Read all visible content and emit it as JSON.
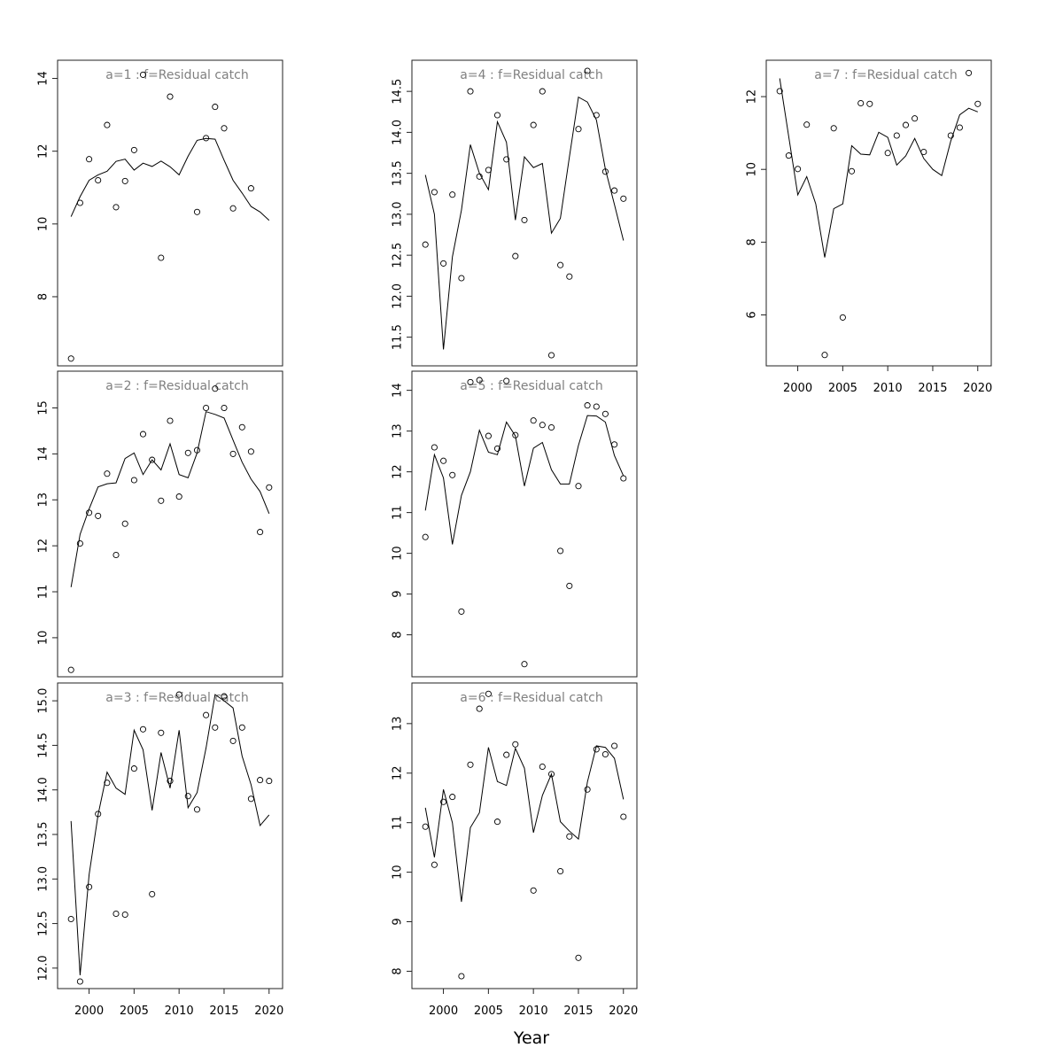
{
  "figure": {
    "xlabel": "Year",
    "style": {
      "line_color": "#000000",
      "title_color": "#808080",
      "background": "#ffffff"
    }
  },
  "chart_data": [
    {
      "type": "line",
      "title": "a=1  :  f=Residual catch",
      "x": [
        1998,
        1999,
        2000,
        2001,
        2002,
        2003,
        2004,
        2005,
        2006,
        2007,
        2008,
        2009,
        2010,
        2011,
        2012,
        2013,
        2014,
        2015,
        2016,
        2017,
        2018,
        2019,
        2020
      ],
      "xlim": [
        1996.5,
        2021.5
      ],
      "xticks": [
        2000,
        2005,
        2010,
        2015,
        2020
      ],
      "ylim": [
        6.1,
        14.5
      ],
      "yticks": [
        8,
        10,
        12,
        14
      ],
      "series": [
        {
          "kind": "line",
          "values": [
            10.2,
            10.75,
            11.2,
            11.35,
            11.45,
            11.72,
            11.78,
            11.48,
            11.67,
            11.58,
            11.73,
            11.57,
            11.35,
            11.86,
            12.3,
            12.35,
            12.33,
            11.75,
            11.2,
            10.85,
            10.48,
            10.33,
            10.1
          ]
        },
        {
          "kind": "points",
          "values": [
            6.3,
            10.58,
            11.78,
            11.2,
            12.72,
            10.46,
            11.18,
            12.03,
            14.1,
            null,
            9.07,
            13.5,
            null,
            null,
            10.33,
            12.36,
            13.22,
            12.63,
            10.43,
            null,
            10.98,
            null,
            null
          ]
        }
      ],
      "show_x_axis": false
    },
    {
      "type": "line",
      "title": "a=2  :  f=Residual catch",
      "x": [
        1998,
        1999,
        2000,
        2001,
        2002,
        2003,
        2004,
        2005,
        2006,
        2007,
        2008,
        2009,
        2010,
        2011,
        2012,
        2013,
        2014,
        2015,
        2016,
        2017,
        2018,
        2019,
        2020
      ],
      "xlim": [
        1996.5,
        2021.5
      ],
      "xticks": [
        2000,
        2005,
        2010,
        2015,
        2020
      ],
      "ylim": [
        9.15,
        15.8
      ],
      "yticks": [
        10,
        11,
        12,
        13,
        14,
        15
      ],
      "series": [
        {
          "kind": "line",
          "values": [
            11.1,
            12.25,
            12.8,
            13.28,
            13.35,
            13.37,
            13.9,
            14.02,
            13.55,
            13.87,
            13.65,
            14.22,
            13.55,
            13.48,
            14.02,
            14.92,
            14.86,
            14.78,
            14.3,
            13.82,
            13.45,
            13.18,
            12.7
          ]
        },
        {
          "kind": "points",
          "values": [
            9.3,
            12.05,
            12.72,
            12.65,
            13.57,
            11.8,
            12.48,
            13.43,
            14.43,
            13.87,
            12.98,
            14.72,
            13.07,
            14.02,
            14.08,
            15.0,
            15.42,
            15.0,
            14.0,
            14.58,
            14.05,
            12.3,
            13.27
          ]
        }
      ],
      "show_x_axis": false
    },
    {
      "type": "line",
      "title": "a=3  :  f=Residual catch",
      "x": [
        1998,
        1999,
        2000,
        2001,
        2002,
        2003,
        2004,
        2005,
        2006,
        2007,
        2008,
        2009,
        2010,
        2011,
        2012,
        2013,
        2014,
        2015,
        2016,
        2017,
        2018,
        2019,
        2020
      ],
      "xlim": [
        1996.5,
        2021.5
      ],
      "xticks": [
        2000,
        2005,
        2010,
        2015,
        2020
      ],
      "ylim": [
        11.77,
        15.2
      ],
      "yticks": [
        12.0,
        12.5,
        13.0,
        13.5,
        14.0,
        14.5,
        15.0
      ],
      "series": [
        {
          "kind": "line",
          "values": [
            13.65,
            11.92,
            13.05,
            13.72,
            14.2,
            14.02,
            13.95,
            14.67,
            14.45,
            13.77,
            14.42,
            14.02,
            14.67,
            13.8,
            13.97,
            14.47,
            15.07,
            15.0,
            14.92,
            14.38,
            14.06,
            13.6,
            13.72
          ]
        },
        {
          "kind": "points",
          "values": [
            12.55,
            11.85,
            12.91,
            13.73,
            14.08,
            12.61,
            12.6,
            14.24,
            14.68,
            12.83,
            14.64,
            14.1,
            15.07,
            13.93,
            13.78,
            14.84,
            14.7,
            15.05,
            14.55,
            14.7,
            13.9,
            14.11,
            14.1
          ]
        }
      ],
      "show_x_axis": true
    },
    {
      "type": "line",
      "title": "a=4  :  f=Residual catch",
      "x": [
        1998,
        1999,
        2000,
        2001,
        2002,
        2003,
        2004,
        2005,
        2006,
        2007,
        2008,
        2009,
        2010,
        2011,
        2012,
        2013,
        2014,
        2015,
        2016,
        2017,
        2018,
        2019,
        2020
      ],
      "xlim": [
        1996.5,
        2021.5
      ],
      "xticks": [
        2000,
        2005,
        2010,
        2015,
        2020
      ],
      "ylim": [
        11.15,
        14.88
      ],
      "yticks": [
        11.5,
        12.0,
        12.5,
        13.0,
        13.5,
        14.0,
        14.5
      ],
      "series": [
        {
          "kind": "line",
          "values": [
            13.48,
            13.0,
            11.35,
            12.48,
            13.05,
            13.85,
            13.5,
            13.3,
            14.13,
            13.88,
            12.93,
            13.7,
            13.57,
            13.62,
            12.77,
            12.95,
            13.7,
            14.43,
            14.37,
            14.15,
            13.55,
            13.12,
            12.68
          ]
        },
        {
          "kind": "points",
          "values": [
            12.63,
            13.27,
            12.4,
            13.24,
            12.22,
            14.5,
            13.46,
            13.54,
            14.21,
            13.67,
            12.49,
            12.93,
            14.09,
            14.5,
            11.28,
            12.38,
            12.24,
            14.04,
            14.75,
            14.21,
            13.52,
            13.29,
            13.19
          ]
        }
      ],
      "show_x_axis": false
    },
    {
      "type": "line",
      "title": "a=5  :  f=Residual catch",
      "x": [
        1998,
        1999,
        2000,
        2001,
        2002,
        2003,
        2004,
        2005,
        2006,
        2007,
        2008,
        2009,
        2010,
        2011,
        2012,
        2013,
        2014,
        2015,
        2016,
        2017,
        2018,
        2019,
        2020
      ],
      "xlim": [
        1996.5,
        2021.5
      ],
      "xticks": [
        2000,
        2005,
        2010,
        2015,
        2020
      ],
      "ylim": [
        6.97,
        14.47
      ],
      "yticks": [
        8,
        9,
        10,
        11,
        12,
        13,
        14
      ],
      "series": [
        {
          "kind": "line",
          "values": [
            11.05,
            12.42,
            11.85,
            10.22,
            11.42,
            12.0,
            13.02,
            12.48,
            12.42,
            13.22,
            12.88,
            11.65,
            12.58,
            12.72,
            12.05,
            11.7,
            11.7,
            12.65,
            13.38,
            13.37,
            13.22,
            12.4,
            11.9
          ]
        },
        {
          "kind": "points",
          "values": [
            10.4,
            12.6,
            12.27,
            11.92,
            8.57,
            14.2,
            14.25,
            12.88,
            12.57,
            14.23,
            12.9,
            7.28,
            13.26,
            13.15,
            13.09,
            10.06,
            9.2,
            11.65,
            13.63,
            13.6,
            13.42,
            12.67,
            11.84
          ]
        }
      ],
      "show_x_axis": false
    },
    {
      "type": "line",
      "title": "a=6  :  f=Residual catch",
      "x": [
        1998,
        1999,
        2000,
        2001,
        2002,
        2003,
        2004,
        2005,
        2006,
        2007,
        2008,
        2009,
        2010,
        2011,
        2012,
        2013,
        2014,
        2015,
        2016,
        2017,
        2018,
        2019,
        2020
      ],
      "xlim": [
        1996.5,
        2021.5
      ],
      "xticks": [
        2000,
        2005,
        2010,
        2015,
        2020
      ],
      "ylim": [
        7.65,
        13.82
      ],
      "yticks": [
        8,
        9,
        10,
        11,
        12,
        13
      ],
      "series": [
        {
          "kind": "line",
          "values": [
            11.3,
            10.3,
            11.67,
            11.0,
            9.4,
            10.9,
            11.2,
            12.52,
            11.83,
            11.75,
            12.5,
            12.1,
            10.8,
            11.55,
            11.98,
            11.02,
            10.83,
            10.67,
            11.82,
            12.55,
            12.52,
            12.3,
            11.47
          ]
        },
        {
          "kind": "points",
          "values": [
            10.92,
            10.15,
            11.42,
            11.52,
            7.9,
            12.17,
            13.3,
            13.6,
            11.02,
            12.37,
            12.58,
            null,
            9.63,
            12.13,
            11.98,
            10.02,
            10.72,
            8.27,
            11.67,
            12.48,
            12.38,
            12.55,
            11.12
          ]
        }
      ],
      "show_x_axis": true
    },
    {
      "type": "line",
      "title": "a=7  :  f=Residual catch",
      "x": [
        1998,
        1999,
        2000,
        2001,
        2002,
        2003,
        2004,
        2005,
        2006,
        2007,
        2008,
        2009,
        2010,
        2011,
        2012,
        2013,
        2014,
        2015,
        2016,
        2017,
        2018,
        2019,
        2020
      ],
      "xlim": [
        1996.5,
        2021.5
      ],
      "xticks": [
        2000,
        2005,
        2010,
        2015,
        2020
      ],
      "ylim": [
        4.6,
        13.0
      ],
      "yticks": [
        6,
        8,
        10,
        12
      ],
      "series": [
        {
          "kind": "line",
          "values": [
            12.5,
            10.9,
            9.3,
            9.8,
            9.05,
            7.58,
            8.92,
            9.05,
            10.65,
            10.42,
            10.4,
            11.02,
            10.88,
            10.12,
            10.37,
            10.85,
            10.3,
            10.0,
            9.83,
            10.78,
            11.5,
            11.68,
            11.58
          ]
        },
        {
          "kind": "points",
          "values": [
            12.15,
            10.38,
            10.01,
            11.23,
            null,
            4.9,
            11.13,
            5.93,
            9.95,
            11.82,
            11.8,
            null,
            10.45,
            10.93,
            11.22,
            11.4,
            10.48,
            null,
            null,
            10.93,
            11.15,
            12.65,
            11.8
          ]
        }
      ],
      "show_x_axis": true
    }
  ]
}
